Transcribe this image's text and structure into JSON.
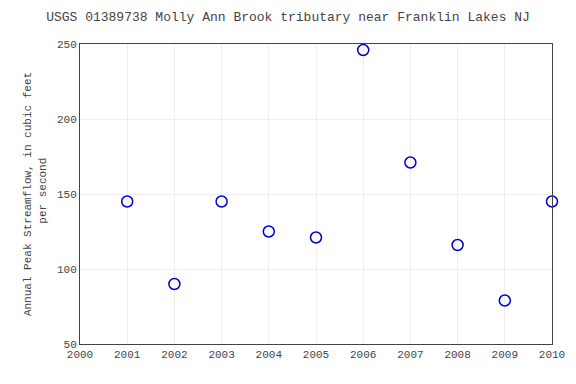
{
  "chart_data": {
    "type": "scatter",
    "title": "USGS 01389738 Molly Ann Brook tributary near Franklin Lakes NJ",
    "ylabel": "Annual Peak Streamflow, in cubic feet\n per second",
    "x": [
      2001,
      2002,
      2003,
      2004,
      2005,
      2006,
      2007,
      2008,
      2009,
      2010
    ],
    "values": [
      145,
      90,
      145,
      125,
      121,
      246,
      171,
      116,
      79,
      145
    ],
    "color": "#0000cc",
    "marker": "circle-open",
    "xlim": [
      2000,
      2010
    ],
    "xticks": [
      2000,
      2001,
      2002,
      2003,
      2004,
      2005,
      2006,
      2007,
      2008,
      2009,
      2010
    ],
    "ylim": [
      50,
      250
    ],
    "yticks": [
      50,
      100,
      150,
      200,
      250
    ],
    "grid": true
  }
}
